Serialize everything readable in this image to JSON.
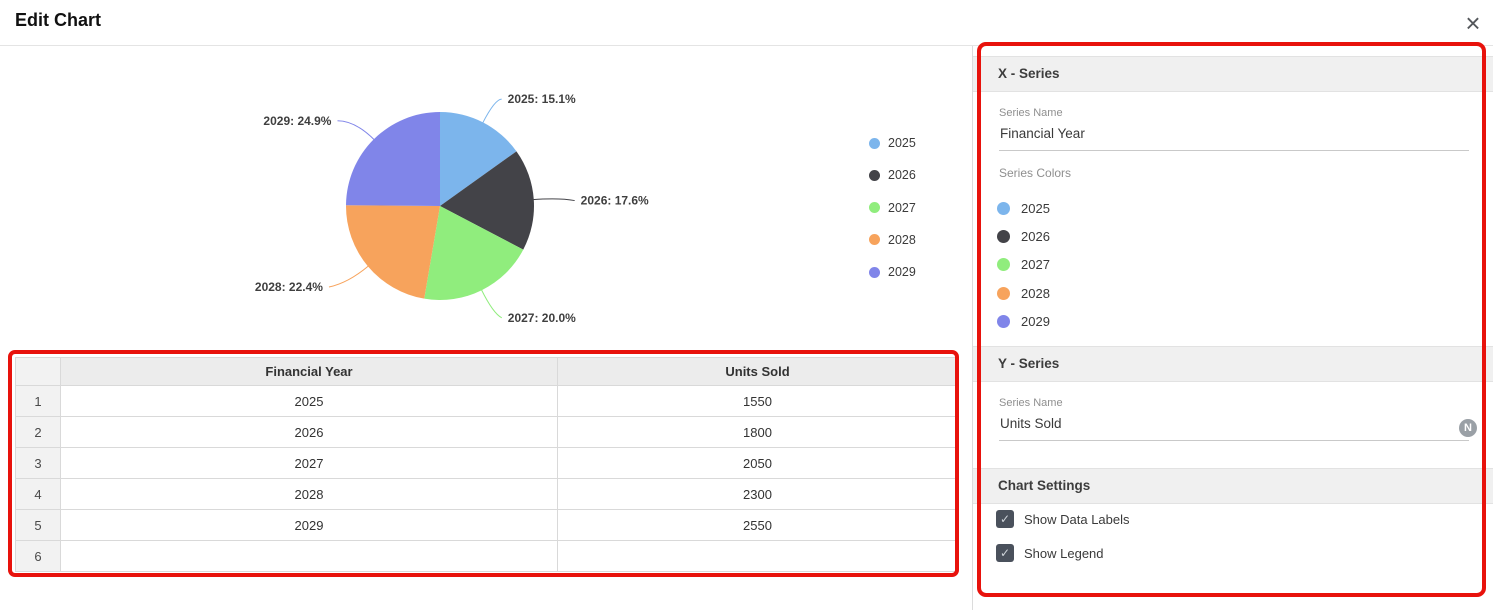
{
  "header": {
    "title": "Edit Chart",
    "close_icon": "×"
  },
  "chart_data": {
    "type": "pie",
    "series_name": "Units Sold",
    "categories": [
      "2025",
      "2026",
      "2027",
      "2028",
      "2029"
    ],
    "values": [
      1550,
      1800,
      2050,
      2300,
      2550
    ],
    "percentages": [
      15.1,
      17.6,
      20.0,
      22.4,
      24.9
    ],
    "data_labels": [
      "2025: 15.1%",
      "2026: 17.6%",
      "2027: 20.0%",
      "2028: 22.4%",
      "2029: 24.9%"
    ],
    "colors": [
      "#7cb5ec",
      "#434348",
      "#90ed7d",
      "#f7a35c",
      "#8085e9"
    ],
    "legend": [
      "2025",
      "2026",
      "2027",
      "2028",
      "2029"
    ],
    "legend_position": "right",
    "show_data_labels": true,
    "show_legend": true
  },
  "table": {
    "columns": [
      "Financial Year",
      "Units Sold"
    ],
    "rows": [
      {
        "num": "1",
        "cells": [
          "2025",
          "1550"
        ]
      },
      {
        "num": "2",
        "cells": [
          "2026",
          "1800"
        ]
      },
      {
        "num": "3",
        "cells": [
          "2027",
          "2050"
        ]
      },
      {
        "num": "4",
        "cells": [
          "2028",
          "2300"
        ]
      },
      {
        "num": "5",
        "cells": [
          "2029",
          "2550"
        ]
      },
      {
        "num": "6",
        "cells": [
          "",
          ""
        ]
      }
    ]
  },
  "panel": {
    "x_series": {
      "header": "X - Series",
      "series_name_label": "Series Name",
      "series_name_value": "Financial Year",
      "series_colors_label": "Series Colors",
      "colors": [
        {
          "label": "2025",
          "color": "#7cb5ec"
        },
        {
          "label": "2026",
          "color": "#434348"
        },
        {
          "label": "2027",
          "color": "#90ed7d"
        },
        {
          "label": "2028",
          "color": "#f7a35c"
        },
        {
          "label": "2029",
          "color": "#8085e9"
        }
      ]
    },
    "y_series": {
      "header": "Y - Series",
      "series_name_label": "Series Name",
      "series_name_value": "Units Sold",
      "type_badge": "N"
    },
    "chart_settings": {
      "header": "Chart Settings",
      "options": [
        {
          "label": "Show Data Labels",
          "checked": true
        },
        {
          "label": "Show Legend",
          "checked": true
        }
      ]
    }
  },
  "annotation_color": "#e8120c"
}
